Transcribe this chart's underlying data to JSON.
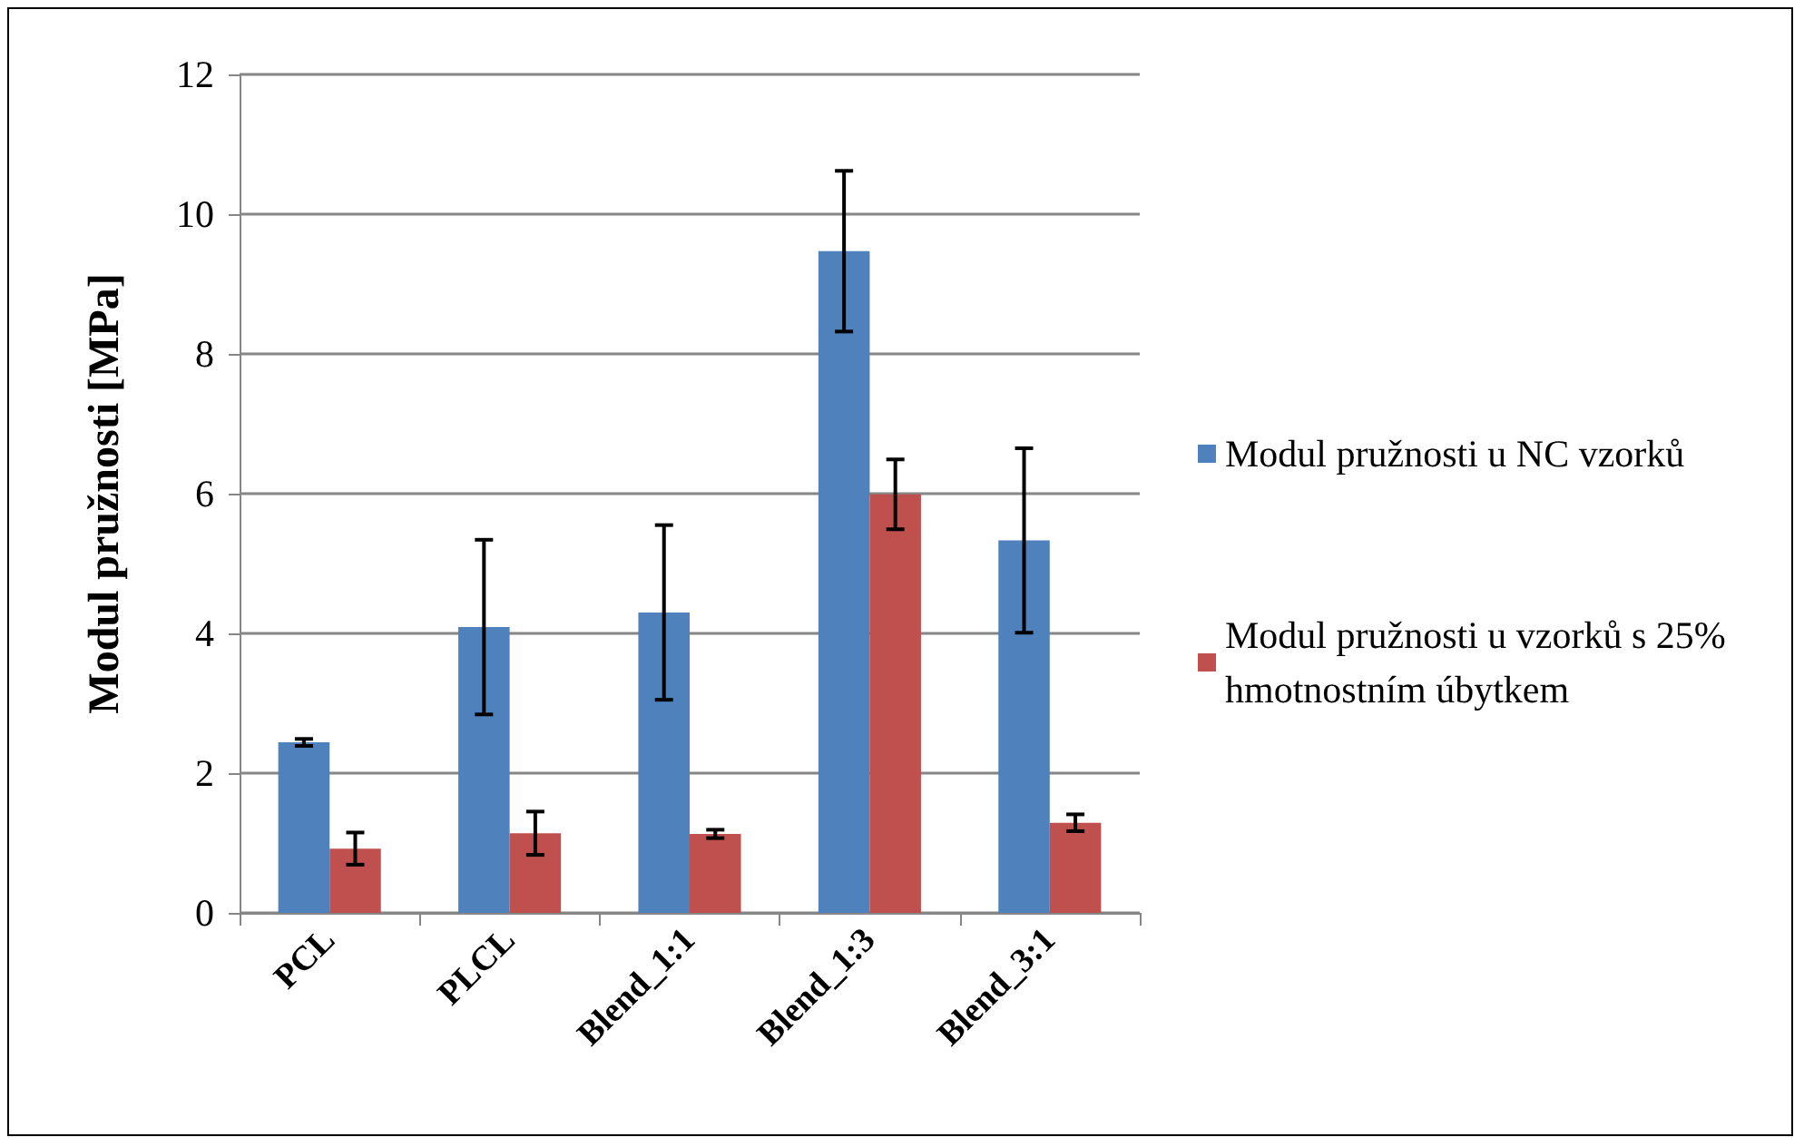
{
  "chart_data": {
    "type": "bar",
    "ylabel": "Modul pružnosti [MPa]",
    "categories": [
      "PCL",
      "PLCL",
      "Blend_1:1",
      "Blend_1:3",
      "Blend_3:1"
    ],
    "series": [
      {
        "name": "Modul pružnosti u NC vzorků",
        "color": "#4f81bd",
        "values": [
          2.44,
          4.09,
          4.3,
          9.47,
          5.33
        ],
        "errors": [
          0.05,
          1.25,
          1.25,
          1.15,
          1.32
        ]
      },
      {
        "name": "Modul pružnosti u vzorků s 25% hmotnostním úbytkem",
        "color": "#c0504d",
        "values": [
          0.92,
          1.14,
          1.13,
          5.99,
          1.29
        ],
        "errors": [
          0.23,
          0.31,
          0.06,
          0.5,
          0.12
        ]
      }
    ],
    "ylim": [
      0,
      12
    ],
    "yticks": [
      0,
      2,
      4,
      6,
      8,
      10,
      12
    ],
    "grid": "y",
    "legend": "right"
  }
}
